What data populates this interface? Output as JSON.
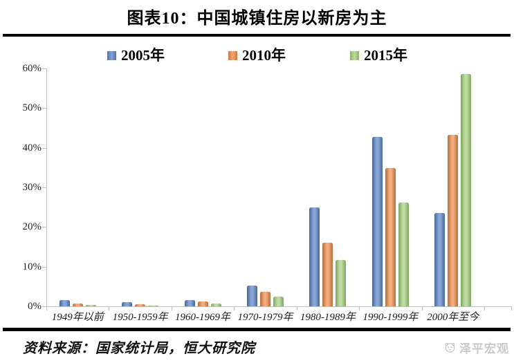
{
  "figure": {
    "title": "图表10：中国城镇住房以新房为主",
    "source_note": "资料来源：国家统计局，恒大研究院",
    "watermark": "泽平宏观"
  },
  "chart_data": {
    "type": "bar",
    "title": "图表10：中国城镇住房以新房为主",
    "categories": [
      "1949年以前",
      "1950-1959年",
      "1960-1969年",
      "1970-1979年",
      "1980-1989年",
      "1990-1999年",
      "2000年至今"
    ],
    "series": [
      {
        "name": "2005年",
        "color": "#5b84c4",
        "values": [
          1.5,
          1.0,
          1.6,
          5.2,
          24.9,
          42.7,
          23.5
        ]
      },
      {
        "name": "2010年",
        "color": "#ed8c4a",
        "values": [
          0.7,
          0.6,
          1.2,
          3.6,
          16.0,
          34.9,
          43.2
        ]
      },
      {
        "name": "2015年",
        "color": "#a5d17d",
        "values": [
          0.4,
          0.2,
          0.7,
          2.4,
          11.6,
          26.2,
          58.6
        ]
      }
    ],
    "xlabel": "",
    "ylabel": "",
    "ylim": [
      0,
      60
    ],
    "ytick_step": 10,
    "ytick_labels": [
      "0%",
      "10%",
      "20%",
      "30%",
      "40%",
      "50%",
      "60%"
    ],
    "grid": false,
    "legend_position": "top",
    "axis_color": "#bfbfbf"
  }
}
